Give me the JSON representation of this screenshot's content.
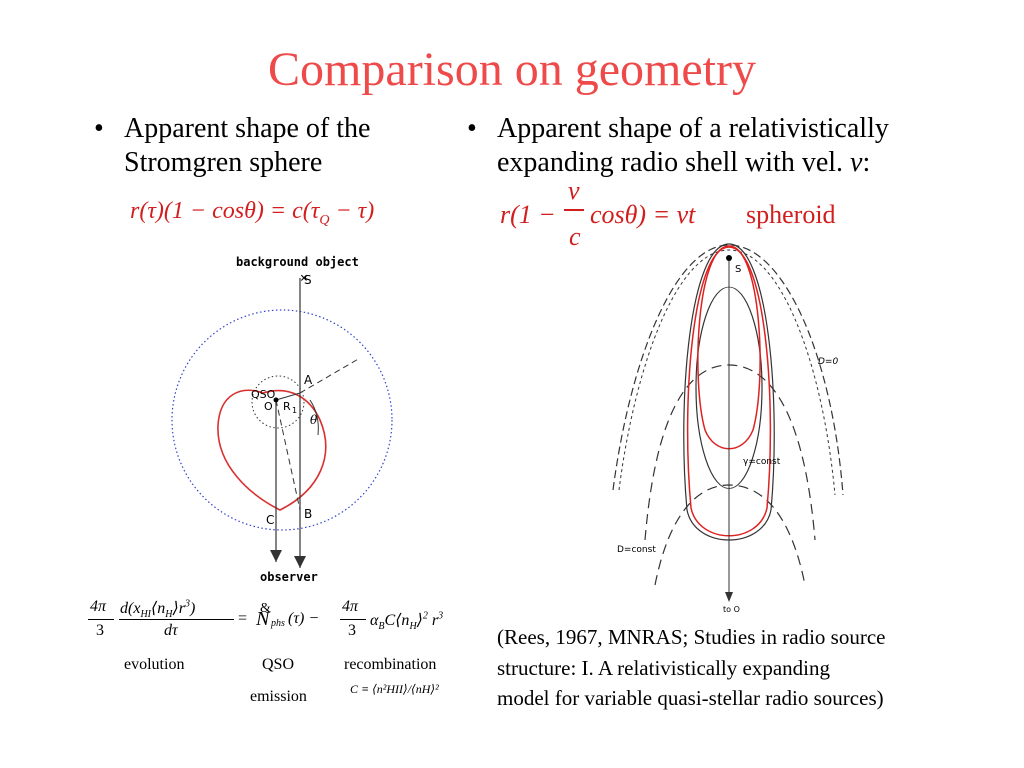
{
  "slide": {
    "title": "Comparison on geometry",
    "left_bullet": {
      "line1": "Apparent shape of the",
      "line2": "Stromgren sphere"
    },
    "right_bullet": {
      "line1": "Apparent shape of a relativistically",
      "line2_prefix": "expanding radio shell with vel. ",
      "line2_var": "v",
      "line2_suffix": ":"
    },
    "bullet_glyph": "•",
    "eq_left": {
      "r_tau": "r(τ)(1 − cosθ) = c(τ",
      "sub": "Q",
      "rest": " − τ)"
    },
    "eq_right": {
      "lhs": "r(1 −",
      "num": "v",
      "den": "c",
      "rhs": "cosθ) = vt",
      "label": "spheroid"
    },
    "fig_left": {
      "labels": {
        "background": "background object",
        "S": "S",
        "A": "A",
        "QSO": "QSO",
        "O": "O",
        "R": "R",
        "R_sub": "1",
        "theta": "θ",
        "C": "C",
        "B": "B",
        "observer": "observer"
      }
    },
    "fig_right": {
      "labels": {
        "S": "S",
        "D0": "D=0",
        "gamma": "γ=const",
        "Dconst": "D=const",
        "to": "to O"
      }
    },
    "eq_bottom": {
      "frac1_num": "4π",
      "frac1_den": "3",
      "deriv_num": "d(x",
      "deriv_num_sub": "HI",
      "deriv_num_n": "⟨n",
      "deriv_num_nsub": "H",
      "deriv_num_end": "⟩r",
      "deriv_num_pow": "3",
      "deriv_num_close": ")",
      "deriv_den": "dτ",
      "eq_sign": "=",
      "N": "N",
      "N_sub": "phs",
      "N_arg": "(τ) −",
      "frac2_num": "4π",
      "frac2_den": "3",
      "alpha": "α",
      "alpha_sub": "B",
      "C_term": "C⟨n",
      "C_sub": "H",
      "C_end": "⟩",
      "C_pow": "2",
      "r3": "r",
      "r3_pow": "3",
      "dot_symbol": "&",
      "label_evolution": "evolution",
      "label_qso": "QSO",
      "label_emission": "emission",
      "label_recomb": "recombination",
      "clump_def": "C ≡ ⟨n²HII⟩/⟨nH⟩²"
    },
    "reference": {
      "line1": "(Rees, 1967, MNRAS; Studies in radio source",
      "line2": "structure: I. A relativistically expanding",
      "line3": "model for variable quasi-stellar radio sources)"
    }
  }
}
